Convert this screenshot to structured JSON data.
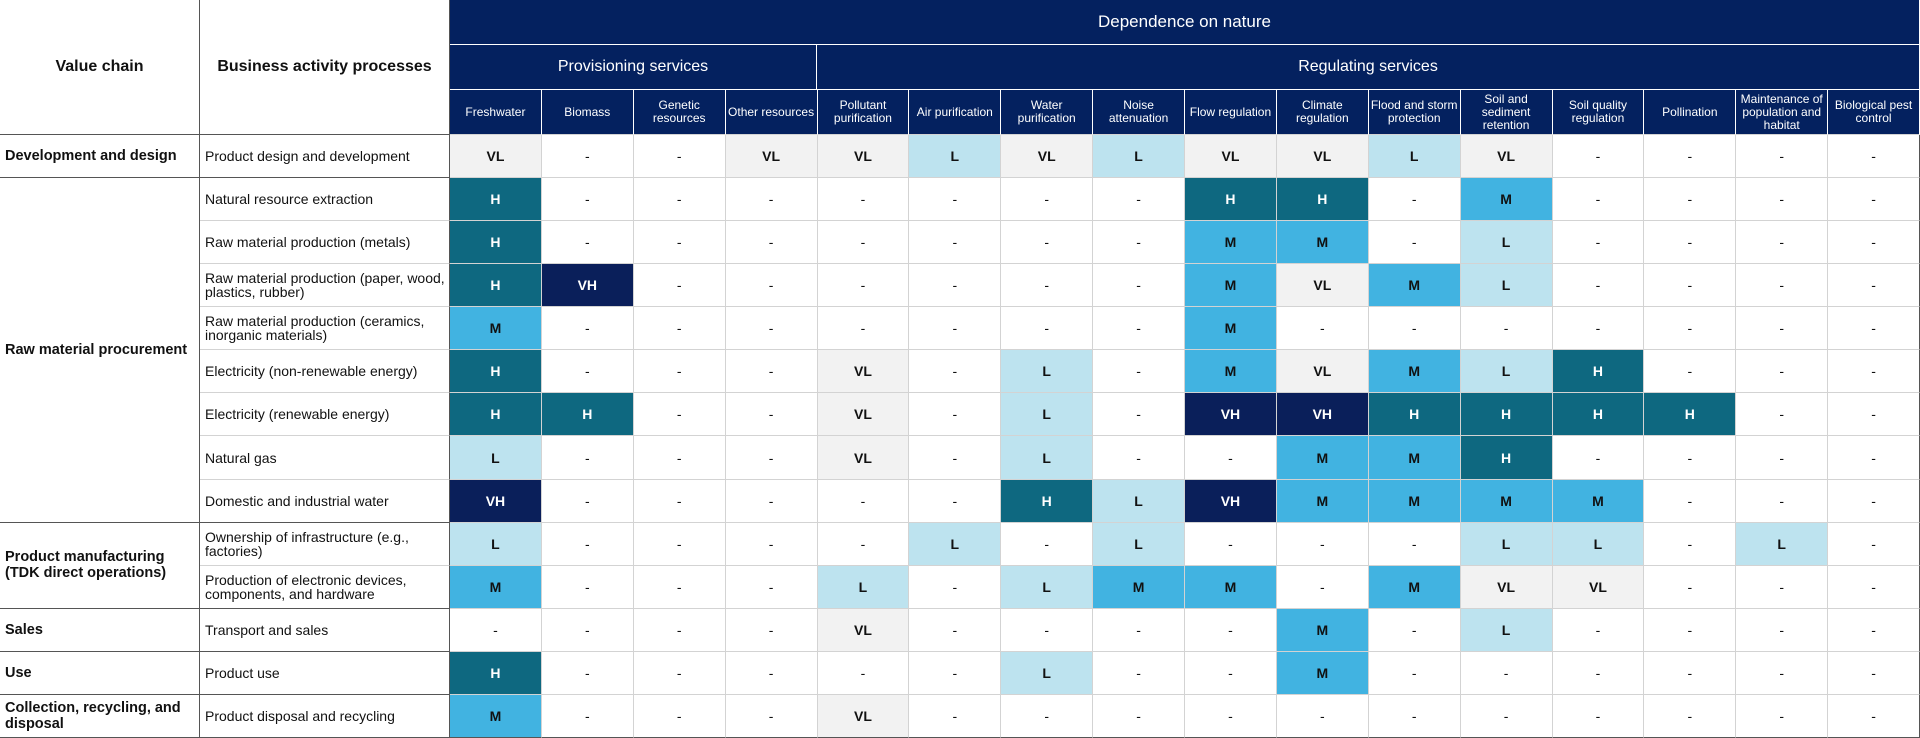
{
  "header": {
    "value_chain": "Value chain",
    "business_activity": "Business activity processes",
    "dependence": "Dependence on nature",
    "provisioning": "Provisioning services",
    "regulating": "Regulating services"
  },
  "columns": [
    "Freshwater",
    "Biomass",
    "Genetic resources",
    "Other resources",
    "Pollutant purification",
    "Air purification",
    "Water purification",
    "Noise attenuation",
    "Flow regulation",
    "Climate regulation",
    "Flood and storm protection",
    "Soil and sediment retention",
    "Soil quality regulation",
    "Pollination",
    "Maintenance of population and habitat",
    "Biological pest control"
  ],
  "value_chains": [
    "Development and design",
    "Raw material procurement",
    "Product manufacturing (TDK direct operations)",
    "Sales",
    "Use",
    "Collection, recycling, and disposal"
  ],
  "rows": [
    {
      "process": "Product design and development",
      "values": [
        "VL",
        "-",
        "-",
        "VL",
        "VL",
        "L",
        "VL",
        "L",
        "VL",
        "VL",
        "L",
        "VL",
        "-",
        "-",
        "-",
        "-"
      ]
    },
    {
      "process": "Natural resource extraction",
      "values": [
        "H",
        "-",
        "-",
        "-",
        "-",
        "-",
        "-",
        "-",
        "H",
        "H",
        "-",
        "M",
        "-",
        "-",
        "-",
        "-"
      ]
    },
    {
      "process": "Raw material production (metals)",
      "values": [
        "H",
        "-",
        "-",
        "-",
        "-",
        "-",
        "-",
        "-",
        "M",
        "M",
        "-",
        "L",
        "-",
        "-",
        "-",
        "-"
      ]
    },
    {
      "process": "Raw material production (paper, wood, plastics, rubber)",
      "values": [
        "H",
        "VH",
        "-",
        "-",
        "-",
        "-",
        "-",
        "-",
        "M",
        "VL",
        "M",
        "L",
        "-",
        "-",
        "-",
        "-"
      ]
    },
    {
      "process": "Raw material production (ceramics, inorganic materials)",
      "values": [
        "M",
        "-",
        "-",
        "-",
        "-",
        "-",
        "-",
        "-",
        "M",
        "-",
        "-",
        "-",
        "-",
        "-",
        "-",
        "-"
      ]
    },
    {
      "process": "Electricity (non-renewable energy)",
      "values": [
        "H",
        "-",
        "-",
        "-",
        "VL",
        "-",
        "L",
        "-",
        "M",
        "VL",
        "M",
        "L",
        "H",
        "-",
        "-",
        "-"
      ]
    },
    {
      "process": "Electricity (renewable energy)",
      "values": [
        "H",
        "H",
        "-",
        "-",
        "VL",
        "-",
        "L",
        "-",
        "VH",
        "VH",
        "H",
        "H",
        "H",
        "H",
        "-",
        "-"
      ]
    },
    {
      "process": "Natural gas",
      "values": [
        "L",
        "-",
        "-",
        "-",
        "VL",
        "-",
        "L",
        "-",
        "-",
        "M",
        "M",
        "H",
        "-",
        "-",
        "-",
        "-"
      ]
    },
    {
      "process": "Domestic and industrial water",
      "values": [
        "VH",
        "-",
        "-",
        "-",
        "-",
        "-",
        "H",
        "L",
        "VH",
        "M",
        "M",
        "M",
        "M",
        "-",
        "-",
        "-"
      ]
    },
    {
      "process": "Ownership of infrastructure (e.g., factories)",
      "values": [
        "L",
        "-",
        "-",
        "-",
        "-",
        "L",
        "-",
        "L",
        "-",
        "-",
        "-",
        "L",
        "L",
        "-",
        "L",
        "-"
      ]
    },
    {
      "process": "Production of electronic devices, components, and hardware",
      "values": [
        "M",
        "-",
        "-",
        "-",
        "L",
        "-",
        "L",
        "M",
        "M",
        "-",
        "M",
        "VL",
        "VL",
        "-",
        "-",
        "-"
      ]
    },
    {
      "process": "Transport and sales",
      "values": [
        "-",
        "-",
        "-",
        "-",
        "VL",
        "-",
        "-",
        "-",
        "-",
        "M",
        "-",
        "L",
        "-",
        "-",
        "-",
        "-"
      ]
    },
    {
      "process": "Product use",
      "values": [
        "H",
        "-",
        "-",
        "-",
        "-",
        "-",
        "L",
        "-",
        "-",
        "M",
        "-",
        "-",
        "-",
        "-",
        "-",
        "-"
      ]
    },
    {
      "process": "Product disposal and recycling",
      "values": [
        "M",
        "-",
        "-",
        "-",
        "VL",
        "-",
        "-",
        "-",
        "-",
        "-",
        "-",
        "-",
        "-",
        "-",
        "-",
        "-"
      ]
    }
  ],
  "legend_colors": {
    "VL": "#f2f2f2",
    "L": "#bde3ef",
    "M": "#41b3e1",
    "H": "#0e6880",
    "VH": "#0a1f5a",
    "header": "#04215f"
  }
}
